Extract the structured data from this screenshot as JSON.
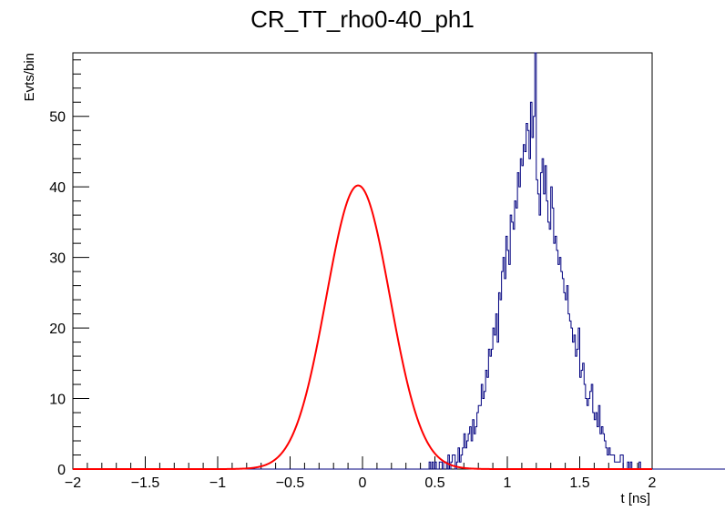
{
  "chart_data": {
    "type": "histogram",
    "title": "CR_TT_rho0-40_ph1",
    "xlabel": "t [ns]",
    "ylabel": "Evts/bin",
    "xlim": [
      -2,
      2
    ],
    "ylim": [
      0,
      59
    ],
    "x_ticks": [
      -2,
      -1.5,
      -1,
      -0.5,
      0,
      0.5,
      1,
      1.5,
      2
    ],
    "x_tick_labels": [
      "−2",
      "−1.5",
      "−1",
      "−0.5",
      "0",
      "0.5",
      "1",
      "1.5",
      "2"
    ],
    "y_ticks": [
      0,
      10,
      20,
      30,
      40,
      50
    ],
    "y_tick_labels": [
      "0",
      "10",
      "20",
      "30",
      "40",
      "50"
    ],
    "bin_width": 0.01,
    "histogram": {
      "name": "",
      "color": "#00007f",
      "x_start": -2.0,
      "counts": [
        0,
        0,
        0,
        0,
        0,
        0,
        0,
        0,
        0,
        0,
        0,
        0,
        0,
        0,
        0,
        0,
        0,
        0,
        0,
        0,
        0,
        0,
        0,
        0,
        0,
        0,
        0,
        0,
        0,
        0,
        0,
        0,
        0,
        0,
        0,
        0,
        0,
        0,
        0,
        0,
        0,
        0,
        0,
        0,
        0,
        0,
        0,
        0,
        0,
        0,
        0,
        0,
        0,
        0,
        0,
        0,
        0,
        0,
        0,
        0,
        0,
        0,
        0,
        0,
        0,
        0,
        0,
        0,
        0,
        0,
        0,
        0,
        0,
        0,
        0,
        0,
        0,
        0,
        0,
        0,
        0,
        0,
        0,
        0,
        0,
        0,
        0,
        0,
        0,
        0,
        0,
        0,
        0,
        0,
        0,
        0,
        0,
        0,
        0,
        0,
        0,
        0,
        0,
        0,
        0,
        0,
        0,
        0,
        0,
        0,
        0,
        0,
        0,
        0,
        0,
        0,
        0,
        0,
        0,
        0,
        0,
        0,
        0,
        0,
        0,
        0,
        0,
        0,
        0,
        0,
        0,
        0,
        0,
        0,
        0,
        0,
        0,
        0,
        0,
        0,
        0,
        0,
        0,
        0,
        0,
        0,
        0,
        0,
        0,
        0,
        0,
        0,
        0,
        0,
        0,
        0,
        0,
        0,
        0,
        0,
        0,
        0,
        0,
        0,
        0,
        0,
        0,
        0,
        0,
        0,
        0,
        0,
        0,
        0,
        0,
        0,
        0,
        0,
        0,
        0,
        0,
        0,
        0,
        0,
        0,
        0,
        0,
        0,
        0,
        0,
        0,
        0,
        0,
        0,
        0,
        0,
        0,
        0,
        0,
        0,
        0,
        0,
        0,
        0,
        0,
        0,
        0,
        0,
        0,
        0,
        0,
        0,
        0,
        0,
        0,
        0,
        0,
        0,
        0,
        0,
        0,
        0,
        0,
        0,
        0,
        0,
        0,
        0,
        0,
        0,
        0,
        0,
        0,
        0,
        0,
        0,
        0,
        0,
        0,
        0,
        0,
        0,
        0,
        0,
        0,
        0,
        1,
        0,
        1,
        0,
        1,
        0,
        0,
        1,
        1,
        0,
        1,
        1,
        0,
        2,
        0,
        1,
        2,
        2,
        0,
        1,
        3,
        1,
        2,
        3,
        5,
        3,
        4,
        5,
        6,
        4,
        7,
        5,
        6,
        8,
        9,
        9,
        12,
        10,
        11,
        14,
        13,
        17,
        16,
        17,
        20,
        19,
        22,
        18,
        25,
        24,
        28,
        30,
        27,
        33,
        31,
        29,
        36,
        35,
        34,
        38,
        37,
        42,
        40,
        44,
        43,
        46,
        45,
        49,
        48,
        44,
        52,
        47,
        50,
        59,
        41,
        39,
        36,
        42,
        44,
        39,
        43,
        38,
        35,
        34,
        40,
        37,
        32,
        33,
        31,
        29,
        30,
        28,
        27,
        25,
        24,
        26,
        22,
        21,
        20,
        18,
        19,
        16,
        17,
        20,
        13,
        14,
        15,
        12,
        10,
        9,
        10,
        11,
        12,
        8,
        7,
        8,
        6,
        9,
        5,
        6,
        5,
        4,
        3,
        2,
        3,
        2,
        2,
        2,
        1,
        1,
        1,
        1,
        2,
        2,
        0,
        0,
        0,
        1,
        0,
        1,
        0,
        0,
        0,
        0,
        0,
        1,
        0,
        0,
        0,
        0,
        0,
        0,
        0,
        0,
        0,
        0,
        0,
        0,
        0,
        0,
        0,
        0,
        0,
        0,
        0,
        0,
        0,
        0,
        0,
        0,
        0,
        0,
        0,
        0,
        0,
        0,
        0,
        0,
        0,
        0,
        0,
        0,
        0,
        0,
        0,
        0,
        0,
        0,
        0,
        0,
        0,
        0,
        0,
        0,
        0,
        0,
        0,
        0,
        0,
        0,
        0,
        0,
        0,
        0,
        0,
        0,
        0,
        0,
        0,
        0,
        0,
        0,
        0,
        0,
        0,
        0,
        0,
        0,
        0,
        0,
        0,
        0,
        0,
        0,
        0,
        0,
        0,
        0,
        0,
        0,
        0,
        0,
        0,
        0,
        0,
        0,
        0,
        0,
        0,
        0,
        0,
        0,
        0,
        0,
        0,
        0,
        0,
        0,
        0,
        0,
        0,
        0,
        0,
        0,
        0,
        0,
        0,
        0,
        0,
        0,
        0,
        0,
        0,
        0,
        0,
        0,
        0,
        0,
        0,
        0,
        0,
        0,
        0,
        0,
        0,
        0,
        0,
        0,
        0,
        0,
        0,
        0,
        0,
        0,
        0,
        0,
        0,
        0,
        0,
        0,
        0,
        0,
        0,
        0,
        0,
        0,
        0,
        0,
        0,
        0,
        0,
        0,
        0,
        0,
        0,
        0,
        0,
        0,
        0,
        0,
        0,
        0,
        0,
        0,
        0,
        0,
        0,
        0
      ]
    },
    "fit": {
      "name": "",
      "type": "gaussian",
      "color": "#ff0000",
      "amplitude": 40.2,
      "mean": -0.03,
      "sigma": 0.22
    },
    "grid": false,
    "legend": "none"
  }
}
